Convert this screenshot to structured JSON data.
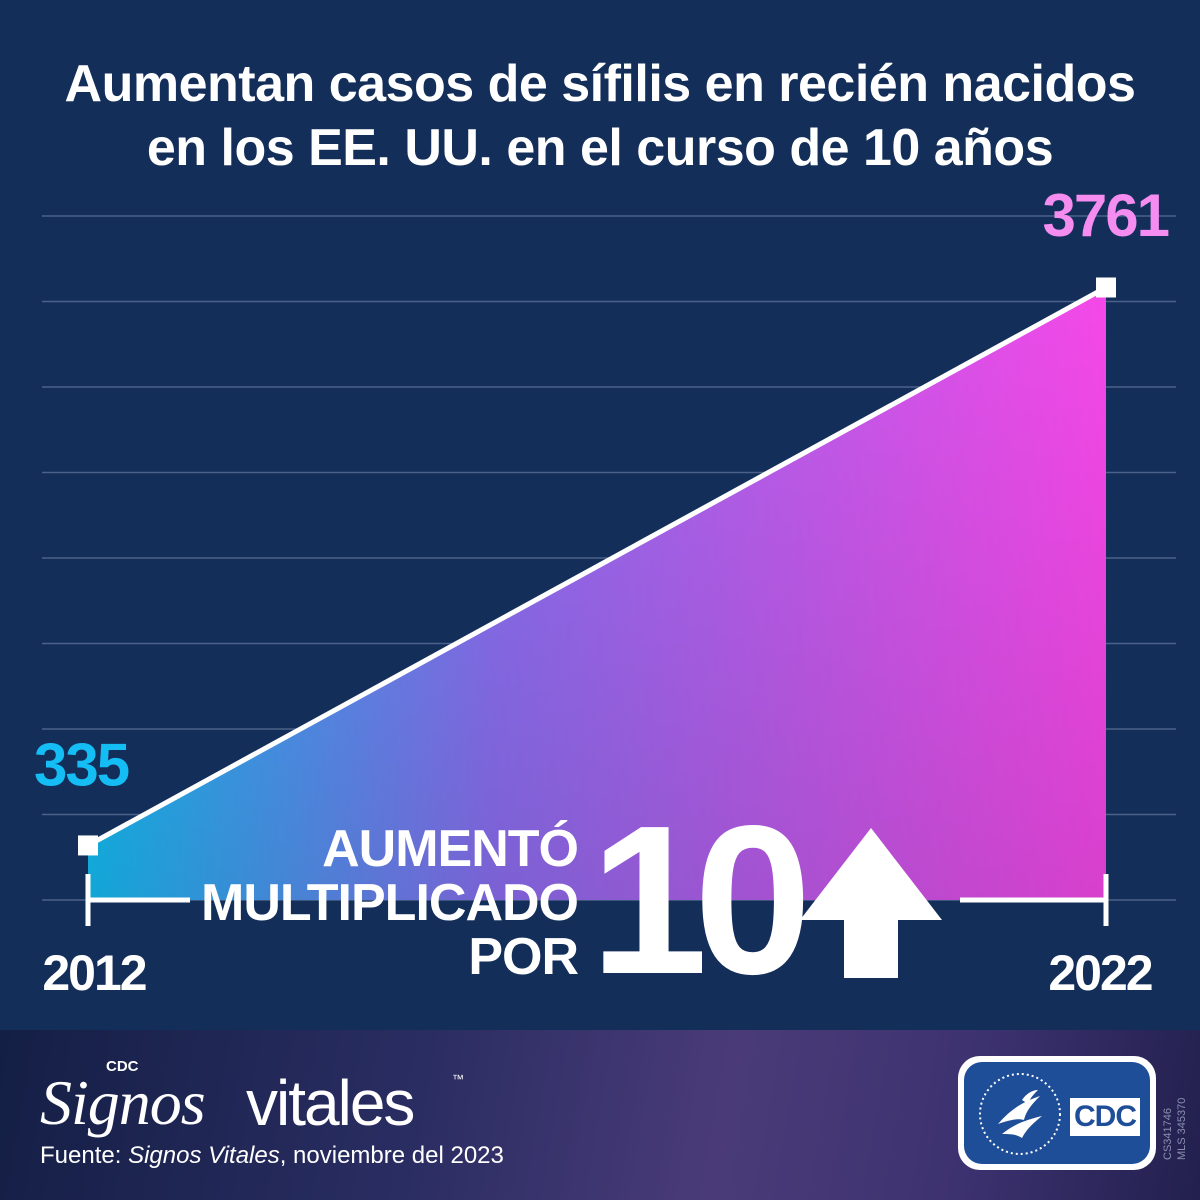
{
  "title": {
    "line1": "Aumentan casos de sífilis en recién nacidos",
    "line2": "en los EE. UU. en el curso de 10 años"
  },
  "chart_data": {
    "type": "area",
    "x": [
      2012,
      2022
    ],
    "x_tick_labels": [
      "2012",
      "2022"
    ],
    "series": [
      {
        "values": [
          335,
          3761
        ]
      }
    ],
    "data_labels": [
      "335",
      "3761"
    ],
    "ylim": [
      0,
      4200
    ],
    "grid": true,
    "colors": {
      "start": "#14bdf3",
      "end": "#f548e8",
      "line": "#ffffff",
      "grid": "#4b6288"
    }
  },
  "callout": {
    "line1": "AUMENTÓ",
    "line2": "MULTIPLICADO",
    "line3": "POR",
    "factor": "10",
    "arrow_icon": "up-arrow-icon"
  },
  "footer": {
    "brand_prefix": "CDC",
    "brand_signos": "Signos",
    "brand_vitales": "vitales",
    "brand_tm": "™",
    "source_prefix": "Fuente: ",
    "source_title": "Signos Vitales",
    "source_suffix": ", noviembre del  2023",
    "logo_text": "CDC",
    "codes": [
      "CS341746",
      "MLS 345370"
    ]
  }
}
